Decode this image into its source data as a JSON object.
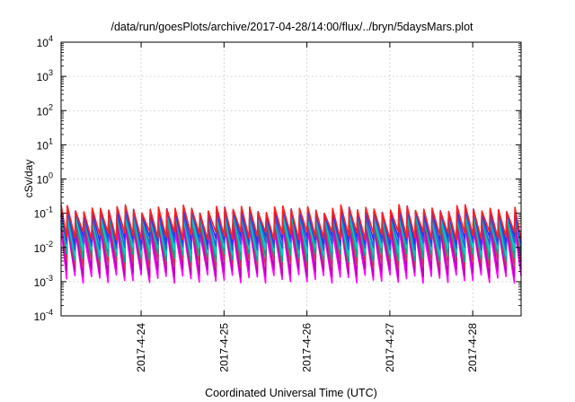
{
  "chart_data": {
    "type": "line",
    "title": "/data/run/goesPlots/archive/2017-04-28/14:00/flux/../bryn/5daysMars.plot",
    "xlabel": "Coordinated Universal Time (UTC)",
    "ylabel": "cSv/day",
    "yscale": "log",
    "ylim": [
      0.0001,
      10000
    ],
    "y_ticks": [
      {
        "exp": "-4",
        "value": 0.0001
      },
      {
        "exp": "-3",
        "value": 0.001
      },
      {
        "exp": "-2",
        "value": 0.01
      },
      {
        "exp": "-1",
        "value": 0.1
      },
      {
        "exp": "0",
        "value": 1
      },
      {
        "exp": "1",
        "value": 10
      },
      {
        "exp": "2",
        "value": 100
      },
      {
        "exp": "3",
        "value": 1000
      },
      {
        "exp": "4",
        "value": 10000
      }
    ],
    "y_tick_base": "10",
    "xlim": [
      "2017-04-23 00:50",
      "2017-04-28 14:00"
    ],
    "x_ticks": [
      "2017-4-24",
      "2017-4-25",
      "2017-4-26",
      "2017-4-27",
      "2017-4-28"
    ],
    "grid": true,
    "pattern_period_hours": 2.4,
    "series": [
      {
        "color": "#ff00ff",
        "peak": 0.032,
        "min": 0.0012
      },
      {
        "color": "#bb00bb",
        "peak": 0.045,
        "min": 0.0018
      },
      {
        "color": "#cc3355",
        "peak": 0.06,
        "min": 0.0032
      },
      {
        "color": "#00aa88",
        "peak": 0.075,
        "min": 0.005
      },
      {
        "color": "#00cccc",
        "peak": 0.085,
        "min": 0.0075
      },
      {
        "color": "#2266dd",
        "peak": 0.1,
        "min": 0.011
      },
      {
        "color": "#3333ee",
        "peak": 0.12,
        "min": 0.016
      },
      {
        "color": "#ff2020",
        "peak": 0.135,
        "min": 0.022
      }
    ]
  }
}
